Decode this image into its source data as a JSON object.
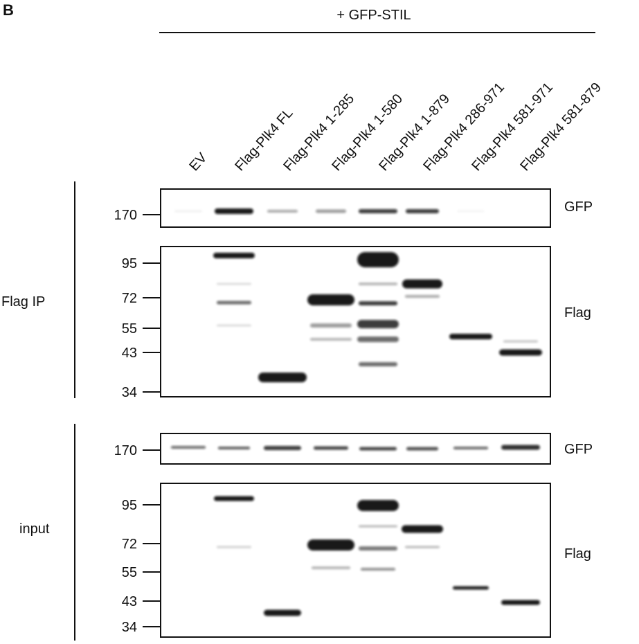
{
  "panel_label": "B",
  "header": "+ GFP-STIL",
  "lanes": [
    "EV",
    "Flag-Plk4 FL",
    "Flag-Plk4 1-285",
    "Flag-Plk4 1-580",
    "Flag-Plk4 1-879",
    "Flag-Plk4 286-971",
    "Flag-Plk4 581-971",
    "Flag-Plk4 581-879"
  ],
  "groups": [
    {
      "label": "Flag IP",
      "blots": [
        {
          "antibody": "GFP",
          "markers": [
            170
          ]
        },
        {
          "antibody": "Flag",
          "markers": [
            95,
            72,
            55,
            43,
            34
          ]
        }
      ]
    },
    {
      "label": "input",
      "blots": [
        {
          "antibody": "GFP",
          "markers": [
            170
          ]
        },
        {
          "antibody": "Flag",
          "markers": [
            95,
            72,
            55,
            43,
            34
          ]
        }
      ]
    }
  ]
}
